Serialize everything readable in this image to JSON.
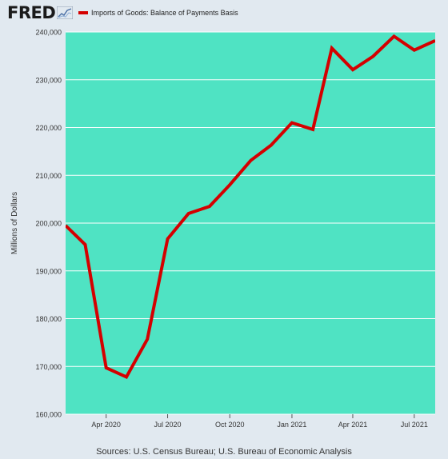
{
  "header": {
    "logo_text": "FRED",
    "logo_icon": "line-chart-icon"
  },
  "chart_data": {
    "type": "line",
    "title": "",
    "xlabel": "",
    "ylabel": "Millions of Dollars",
    "legend": "top-left",
    "grid": true,
    "colors": {
      "plot_bg": "#4fe3c3",
      "line": "#d40000",
      "page_bg": "#e1e9f0",
      "grid": "#ffffff"
    },
    "x_ticks": [
      {
        "date": "2020-04-01",
        "label": "Apr 2020"
      },
      {
        "date": "2020-07-01",
        "label": "Jul 2020"
      },
      {
        "date": "2020-10-01",
        "label": "Oct 2020"
      },
      {
        "date": "2021-01-01",
        "label": "Jan 2021"
      },
      {
        "date": "2021-04-01",
        "label": "Apr 2021"
      },
      {
        "date": "2021-07-01",
        "label": "Jul 2021"
      }
    ],
    "y_ticks": [
      {
        "value": 160000,
        "label": "160,000"
      },
      {
        "value": 170000,
        "label": "170,000"
      },
      {
        "value": 180000,
        "label": "180,000"
      },
      {
        "value": 190000,
        "label": "190,000"
      },
      {
        "value": 200000,
        "label": "200,000"
      },
      {
        "value": 210000,
        "label": "210,000"
      },
      {
        "value": 220000,
        "label": "220,000"
      },
      {
        "value": 230000,
        "label": "230,000"
      },
      {
        "value": 240000,
        "label": "240,000"
      }
    ],
    "xlim": [
      "2020-02-01",
      "2021-08-01"
    ],
    "ylim": [
      160000,
      240000
    ],
    "series": [
      {
        "name": "Imports of Goods: Balance of Payments Basis",
        "x": [
          "2020-02-01",
          "2020-03-01",
          "2020-04-01",
          "2020-05-01",
          "2020-06-01",
          "2020-07-01",
          "2020-08-01",
          "2020-09-01",
          "2020-10-01",
          "2020-11-01",
          "2020-12-01",
          "2021-01-01",
          "2021-02-01",
          "2021-03-01",
          "2021-04-01",
          "2021-05-01",
          "2021-06-01",
          "2021-07-01",
          "2021-08-01"
        ],
        "values": [
          199500,
          195500,
          169700,
          167800,
          175700,
          196700,
          202000,
          203500,
          208000,
          213100,
          216300,
          221000,
          219600,
          236600,
          232100,
          234900,
          239100,
          236200,
          238200
        ]
      }
    ]
  },
  "footer": {
    "source": "Sources: U.S. Census Bureau; U.S. Bureau of Economic Analysis"
  }
}
